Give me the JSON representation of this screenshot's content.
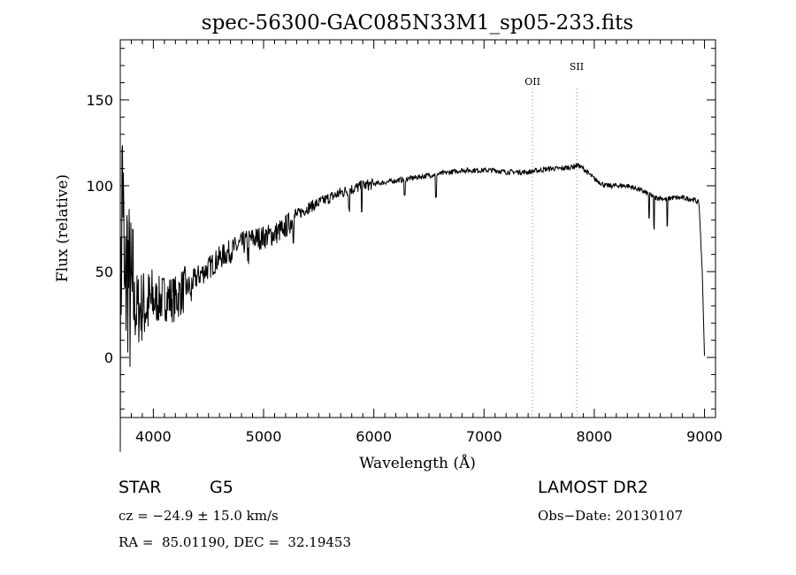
{
  "chart_data": {
    "type": "line",
    "title": "spec-56300-GAC085N33M1_sp05-233.fits",
    "xlabel": "Wavelength (Å)",
    "ylabel": "Flux (relative)",
    "xlim": [
      3700,
      9100
    ],
    "ylim": [
      -35,
      185
    ],
    "x_ticks": [
      4000,
      5000,
      6000,
      7000,
      8000,
      9000
    ],
    "y_ticks": [
      0,
      50,
      100,
      150
    ],
    "grid": false,
    "series": [
      {
        "x": [
          3700,
          3720,
          3740,
          3760,
          3780,
          3800,
          3850,
          3900,
          3950,
          4000,
          4100,
          4200,
          4250,
          4300,
          4400,
          4500,
          4600,
          4700,
          4800,
          4900,
          5000,
          5100,
          5200,
          5300,
          5400,
          5500,
          5600,
          5700,
          5800,
          5900,
          6000,
          6100,
          6200,
          6300,
          6400,
          6500,
          6600,
          6700,
          6800,
          6900,
          7000,
          7100,
          7200,
          7300,
          7400,
          7500,
          7600,
          7700,
          7800,
          7850,
          7900,
          8000,
          8100,
          8200,
          8300,
          8400,
          8500,
          8550,
          8600,
          8650,
          8700,
          8800,
          8900,
          8950,
          8980,
          9000
        ],
        "y": [
          0,
          120,
          20,
          60,
          40,
          30,
          28,
          30,
          30,
          32,
          35,
          34,
          38,
          40,
          47,
          52,
          58,
          62,
          66,
          69,
          70,
          72,
          76,
          83,
          87,
          90,
          93,
          96,
          98,
          100,
          101,
          102,
          103,
          104,
          105,
          106,
          107,
          108,
          109,
          109,
          109,
          109,
          108,
          108,
          108,
          109,
          110,
          110,
          111,
          112,
          110,
          104,
          100,
          100,
          100,
          98,
          95,
          93,
          93,
          92,
          93,
          93,
          92,
          90,
          50,
          1
        ]
      }
    ],
    "absorption_lines": [
      {
        "x": 4340,
        "depth": 8
      },
      {
        "x": 4861,
        "depth": 8
      },
      {
        "x": 5175,
        "depth": 6
      },
      {
        "x": 5270,
        "depth": 8
      },
      {
        "x": 5775,
        "depth": 10
      },
      {
        "x": 5890,
        "depth": 12
      },
      {
        "x": 6280,
        "depth": 10
      },
      {
        "x": 6563,
        "depth": 14
      },
      {
        "x": 8498,
        "depth": 14
      },
      {
        "x": 8542,
        "depth": 18
      },
      {
        "x": 8662,
        "depth": 16
      }
    ],
    "vlines": [
      {
        "x": 7440,
        "label": "OII"
      },
      {
        "x": 7840,
        "label": "SII"
      }
    ]
  },
  "info": {
    "object_type": "STAR",
    "subclass": "G5",
    "survey": "LAMOST DR2",
    "cz": "cz = −24.9 ± 15.0 km/s",
    "obs_date": "Obs−Date: 20130107",
    "coords": "RA =  85.01190, DEC =  32.19453"
  }
}
